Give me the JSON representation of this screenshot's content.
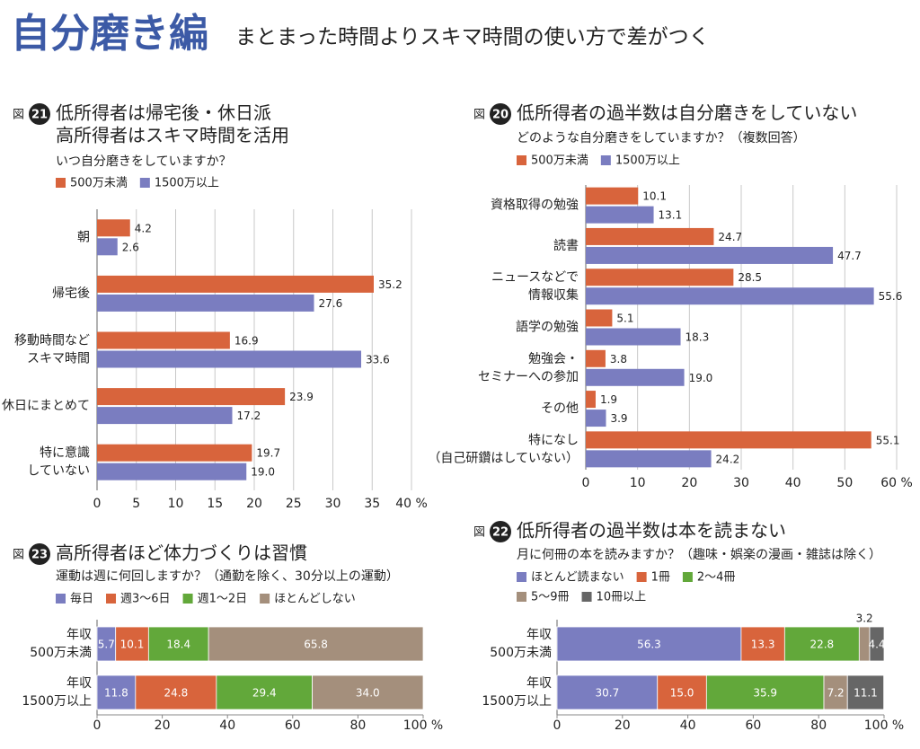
{
  "header": {
    "title": "自分磨き編",
    "subtitle": "まとまった時間よりスキマ時間の使い方で差がつく"
  },
  "chart_data": [
    {
      "type": "bar",
      "orientation": "horizontal",
      "fig_label": "図",
      "fig_number": "21",
      "title": [
        "低所得者は帰宅後・休日派",
        "高所得者はスキマ時間を活用"
      ],
      "question": "いつ自分磨きをしていますか？",
      "categories": [
        "朝",
        "帰宅後",
        "移動時間など\nスキマ時間",
        "休日にまとめて",
        "特に意識\nしていない"
      ],
      "series": [
        {
          "name": "500万未満",
          "color": "#d8643c",
          "values": [
            4.2,
            35.2,
            16.9,
            23.9,
            19.7
          ],
          "value_labels": [
            "4.2",
            "35.2",
            "16.9",
            "23.9",
            "19.7"
          ]
        },
        {
          "name": "1500万以上",
          "color": "#7a7dc0",
          "values": [
            2.6,
            27.6,
            33.6,
            17.2,
            19.0
          ],
          "value_labels": [
            "2.6",
            "27.6",
            "33.6",
            "17.2",
            "19.0"
          ]
        }
      ],
      "xlim": [
        0,
        40
      ],
      "xticks": [
        0,
        5,
        10,
        15,
        20,
        25,
        30,
        35,
        {
          "value": 40,
          "label": "40 %"
        }
      ],
      "grid": true
    },
    {
      "type": "bar",
      "orientation": "horizontal",
      "fig_label": "図",
      "fig_number": "20",
      "title": [
        "低所得者の過半数は自分磨きをしていない"
      ],
      "question": "どのような自分磨きをしていますか？（複数回答）",
      "categories": [
        "資格取得の勉強",
        "読書",
        "ニュースなどで\n情報収集",
        "語学の勉強",
        "勉強会・\nセミナーへの参加",
        "その他",
        "特になし\n（自己研鑽はしていない）"
      ],
      "series": [
        {
          "name": "500万未満",
          "color": "#d8643c",
          "values": [
            10.1,
            24.7,
            28.5,
            5.1,
            3.8,
            1.9,
            55.1
          ],
          "value_labels": [
            "10.1",
            "24.7",
            "28.5",
            "5.1",
            "3.8",
            "1.9",
            "55.1"
          ]
        },
        {
          "name": "1500万以上",
          "color": "#7a7dc0",
          "values": [
            13.1,
            47.7,
            55.6,
            18.3,
            19.0,
            3.9,
            24.2
          ],
          "value_labels": [
            "13.1",
            "47.7",
            "55.6",
            "18.3",
            "19.0",
            "3.9",
            "24.2"
          ]
        }
      ],
      "xlim": [
        0,
        60
      ],
      "xticks": [
        0,
        10,
        20,
        30,
        40,
        50,
        {
          "value": 60,
          "label": "60 %"
        }
      ],
      "grid": true
    },
    {
      "type": "stacked_bar",
      "orientation": "horizontal",
      "fig_label": "図",
      "fig_number": "23",
      "title": [
        "高所得者ほど体力づくりは習慣"
      ],
      "question": "運動は週に何回しますか？（通勤を除く、30分以上の運動）",
      "categories": [
        "年収\n500万未満",
        "年収\n1500万以上"
      ],
      "series": [
        {
          "name": "毎日",
          "color": "#7a7dc0",
          "values": [
            5.7,
            11.8
          ],
          "value_labels": [
            "5.7",
            "11.8"
          ]
        },
        {
          "name": "週3〜6日",
          "color": "#d8643c",
          "values": [
            10.1,
            24.8
          ],
          "value_labels": [
            "10.1",
            "24.8"
          ]
        },
        {
          "name": "週1〜2日",
          "color": "#62a83a",
          "values": [
            18.4,
            29.4
          ],
          "value_labels": [
            "18.4",
            "29.4"
          ]
        },
        {
          "name": "ほとんどしない",
          "color": "#a48f7c",
          "values": [
            65.8,
            34.0
          ],
          "value_labels": [
            "65.8",
            "34.0"
          ]
        }
      ],
      "xlim": [
        0,
        100
      ],
      "xticks": [
        0,
        20,
        40,
        60,
        80,
        {
          "value": 100,
          "label": "100 %"
        }
      ],
      "grid": false
    },
    {
      "type": "stacked_bar",
      "orientation": "horizontal",
      "fig_label": "図",
      "fig_number": "22",
      "title": [
        "低所得者の過半数は本を読まない"
      ],
      "question": "月に何冊の本を読みますか？（趣味・娯楽の漫画・雑誌は除く）",
      "categories": [
        "年収\n500万未満",
        "年収\n1500万以上"
      ],
      "series": [
        {
          "name": "ほとんど読まない",
          "color": "#7a7dc0",
          "values": [
            56.3,
            30.7
          ],
          "value_labels": [
            "56.3",
            "30.7"
          ]
        },
        {
          "name": "1冊",
          "color": "#d8643c",
          "values": [
            13.3,
            15.0
          ],
          "value_labels": [
            "13.3",
            "15.0"
          ]
        },
        {
          "name": "2〜4冊",
          "color": "#62a83a",
          "values": [
            22.8,
            35.9
          ],
          "value_labels": [
            "22.8",
            "35.9"
          ]
        },
        {
          "name": "5〜9冊",
          "color": "#a48f7c",
          "values": [
            3.2,
            7.2
          ],
          "value_labels": [
            "3.2",
            "7.2"
          ]
        },
        {
          "name": "10冊以上",
          "color": "#666666",
          "values": [
            4.4,
            11.1
          ],
          "value_labels": [
            "4.4",
            "11.1"
          ]
        }
      ],
      "xlim": [
        0,
        100
      ],
      "xticks": [
        0,
        20,
        40,
        60,
        80,
        {
          "value": 100,
          "label": "100 %"
        }
      ],
      "grid": false
    }
  ]
}
